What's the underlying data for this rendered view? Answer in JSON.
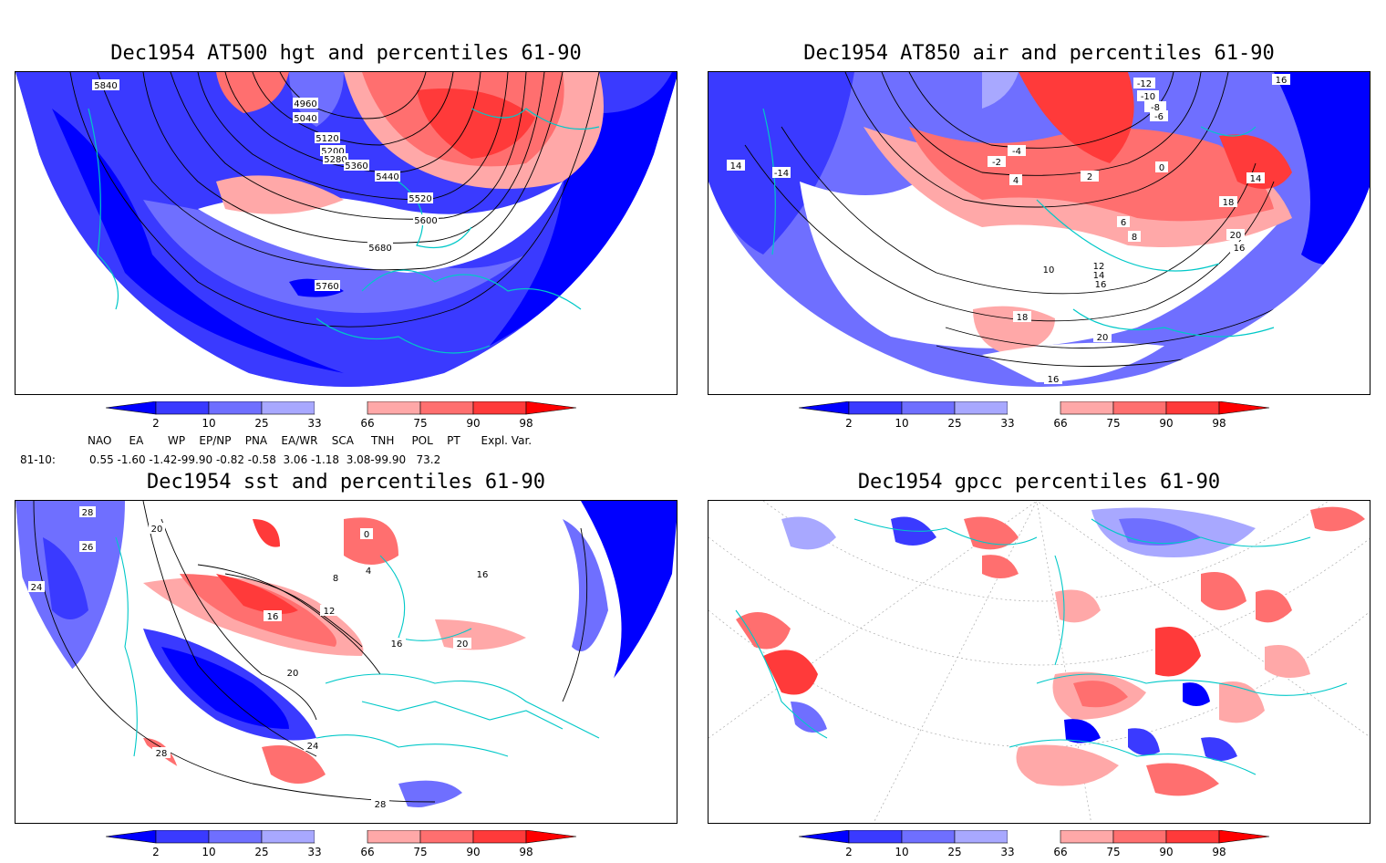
{
  "panels": [
    {
      "title": "Dec1954 AT500 hgt and percentiles 61-90",
      "contour_labels": [
        "5840",
        "4960",
        "5040",
        "5120",
        "5200",
        "5280",
        "5360",
        "5440",
        "5520",
        "5600",
        "5680",
        "5760"
      ]
    },
    {
      "title": "Dec1954 AT850 air and percentiles 61-90",
      "contour_labels": [
        "16",
        "14",
        "-14",
        "-12",
        "-10",
        "-8",
        "-6",
        "-4",
        "-2",
        "2",
        "0",
        "4",
        "6",
        "8",
        "10",
        "12",
        "14",
        "16",
        "18",
        "20",
        "16",
        "14",
        "18",
        "20",
        "16"
      ]
    },
    {
      "title": "Dec1954 sst and percentiles 61-90",
      "contour_labels": [
        "28",
        "20",
        "26",
        "24",
        "0",
        "4",
        "8",
        "12",
        "16",
        "20",
        "24",
        "28",
        "28",
        "16",
        "20",
        "16"
      ]
    },
    {
      "title": "Dec1954 gpcc percentiles 61-90",
      "contour_labels": []
    }
  ],
  "colorbar": {
    "tick_labels": [
      "2",
      "10",
      "25",
      "33",
      "66",
      "75",
      "90",
      "98"
    ],
    "colors": [
      "#0000ff",
      "#3a3aff",
      "#6f6fff",
      "#a8a8ff",
      "#ffa8a8",
      "#ff6f6f",
      "#ff3a3a",
      "#ff0000"
    ]
  },
  "indices": {
    "headers": [
      "NAO",
      "EA",
      "WP",
      "EP/NP",
      "PNA",
      "EA/WR",
      "SCA",
      "TNH",
      "POL",
      "PT",
      "Expl. Var."
    ],
    "row_label": "81-10:",
    "values_text": "0.55 -1.60 -1.42-99.90 -0.82 -0.58  3.06 -1.18  3.08-99.90   73.2"
  }
}
